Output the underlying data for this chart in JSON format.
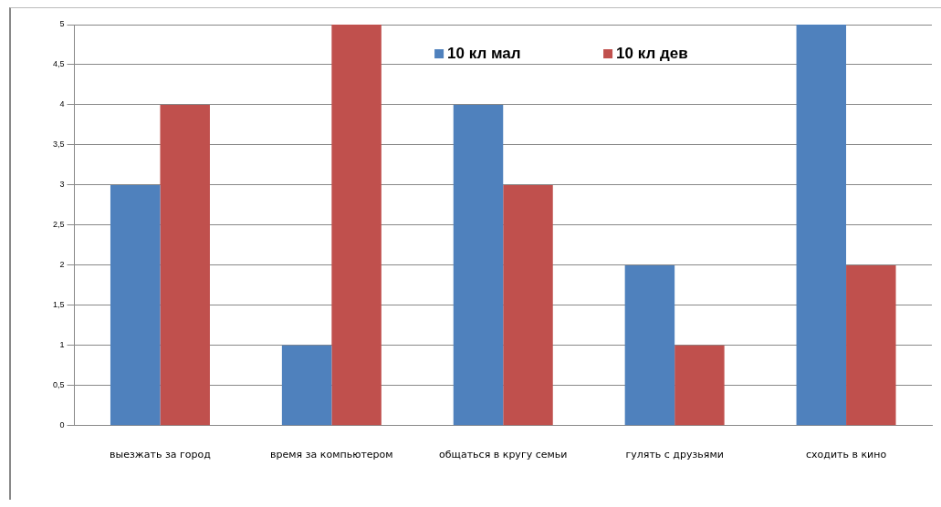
{
  "chart_data": {
    "type": "bar",
    "categories": [
      "выезжать за город",
      "время за компьютером",
      "общаться в кругу семьи",
      "гулять с друзьями",
      "сходить в кино"
    ],
    "series": [
      {
        "name": "10 кл мал",
        "color": "#4f81bd",
        "values": [
          3,
          1,
          4,
          2,
          5
        ]
      },
      {
        "name": "10 кл дев",
        "color": "#c0504d",
        "values": [
          4,
          5,
          3,
          1,
          2
        ]
      }
    ],
    "ylim": [
      0,
      5
    ],
    "yticks": [
      0,
      {
        "value": 0.5,
        "label": "0,5"
      },
      1,
      {
        "value": 1.5,
        "label": "1,5"
      },
      2,
      {
        "value": 2.5,
        "label": "2,5"
      },
      3,
      {
        "value": 3.5,
        "label": "3,5"
      },
      4,
      {
        "value": 4.5,
        "label": "4,5"
      },
      5
    ],
    "grid": "y",
    "legend": "top"
  }
}
